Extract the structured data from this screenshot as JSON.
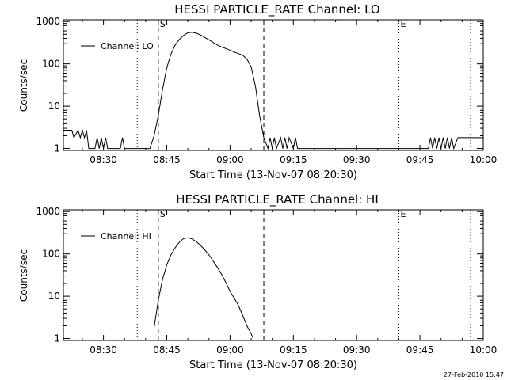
{
  "chart_data": [
    {
      "type": "line",
      "title": "HESSI PARTICLE_RATE Channel: LO",
      "xlabel": "Start Time (13-Nov-07 08:20:30)",
      "ylabel": "Counts/sec",
      "yscale": "log",
      "ylim": [
        0.9,
        1100
      ],
      "xlim": [
        "08:20:30",
        "10:00:00"
      ],
      "xticks": [
        "08:30",
        "08:45",
        "09:00",
        "09:15",
        "09:30",
        "09:45",
        "10:00"
      ],
      "yticks": [
        "1",
        "10",
        "100",
        "1000"
      ],
      "legend": {
        "label": "Channel: LO",
        "position": "top-left"
      },
      "markers": [
        {
          "time": "08:38:00",
          "style": "dotted",
          "label": ""
        },
        {
          "time": "08:43:00",
          "style": "dashed",
          "label": "S"
        },
        {
          "time": "09:08:00",
          "style": "dashed",
          "label": ""
        },
        {
          "time": "09:40:00",
          "style": "dotted",
          "label": "E"
        },
        {
          "time": "09:57:00",
          "style": "dotted",
          "label": ""
        }
      ],
      "series": [
        {
          "name": "Channel: LO",
          "x": [
            "08:20:30",
            "08:22:30",
            "08:23:00",
            "08:24:00",
            "08:24:30",
            "08:25:00",
            "08:25:30",
            "08:26:00",
            "08:26:30",
            "08:27:00",
            "08:28:00",
            "08:28:30",
            "08:29:00",
            "08:29:30",
            "08:30:00",
            "08:30:30",
            "08:31:00",
            "08:32:00",
            "08:33:00",
            "08:34:00",
            "08:34:30",
            "08:35:00",
            "08:36:00",
            "08:37:00",
            "08:38:00",
            "08:39:00",
            "08:40:00",
            "08:41:00",
            "08:42:00",
            "08:43:00",
            "08:44:00",
            "08:45:00",
            "08:46:00",
            "08:47:00",
            "08:48:00",
            "08:49:00",
            "08:50:00",
            "08:51:00",
            "08:52:00",
            "08:53:00",
            "08:54:00",
            "08:55:00",
            "08:56:00",
            "08:57:00",
            "08:58:00",
            "08:59:00",
            "09:00:00",
            "09:01:00",
            "09:02:00",
            "09:03:00",
            "09:04:00",
            "09:05:00",
            "09:06:00",
            "09:07:00",
            "09:08:00",
            "09:09:00",
            "09:09:30",
            "09:10:00",
            "09:10:30",
            "09:11:00",
            "09:12:00",
            "09:12:30",
            "09:13:00",
            "09:13:30",
            "09:14:00",
            "09:15:00",
            "09:15:30",
            "09:16:00",
            "09:17:00",
            "09:18:00",
            "09:30:00",
            "09:40:00",
            "09:47:00",
            "09:47:30",
            "09:48:00",
            "09:48:30",
            "09:49:00",
            "09:49:30",
            "09:50:00",
            "09:50:30",
            "09:51:00",
            "09:51:30",
            "09:52:00",
            "09:52:30",
            "09:53:00",
            "09:54:00",
            "09:55:00",
            "09:56:00",
            "09:57:00",
            "10:00:00"
          ],
          "values": [
            2.7,
            2.7,
            1.8,
            2.7,
            1.8,
            2.7,
            1.8,
            2.7,
            1,
            1,
            1,
            1.8,
            1,
            1.8,
            1,
            1.8,
            1,
            1,
            1,
            1,
            1.8,
            1,
            1,
            1,
            1,
            1,
            1,
            1,
            2,
            6,
            25,
            80,
            170,
            280,
            380,
            470,
            540,
            560,
            530,
            480,
            420,
            370,
            320,
            280,
            250,
            230,
            210,
            190,
            175,
            160,
            130,
            85,
            30,
            6,
            1.8,
            1,
            1.8,
            1,
            1.8,
            1,
            1.8,
            1,
            1.8,
            1,
            1.8,
            1,
            1.8,
            1,
            1,
            1,
            1,
            1,
            1,
            1.8,
            1,
            1.8,
            1,
            1.8,
            1,
            1.8,
            1,
            1.8,
            1,
            1.8,
            1,
            1.8,
            1.8,
            1.8,
            1.8,
            1.8
          ]
        }
      ]
    },
    {
      "type": "line",
      "title": "HESSI PARTICLE_RATE Channel: HI",
      "xlabel": "Start Time (13-Nov-07 08:20:30)",
      "ylabel": "Counts/sec",
      "yscale": "log",
      "ylim": [
        0.9,
        1100
      ],
      "xlim": [
        "08:20:30",
        "10:00:00"
      ],
      "xticks": [
        "08:30",
        "08:45",
        "09:00",
        "09:15",
        "09:30",
        "09:45",
        "10:00"
      ],
      "yticks": [
        "1",
        "10",
        "100",
        "1000"
      ],
      "legend": {
        "label": "Channel: HI",
        "position": "top-left"
      },
      "markers": [
        {
          "time": "08:38:00",
          "style": "dotted",
          "label": ""
        },
        {
          "time": "08:43:00",
          "style": "dashed",
          "label": "S"
        },
        {
          "time": "09:08:00",
          "style": "dashed",
          "label": ""
        },
        {
          "time": "09:40:00",
          "style": "dotted",
          "label": "E"
        },
        {
          "time": "09:57:00",
          "style": "dotted",
          "label": ""
        }
      ],
      "series": [
        {
          "name": "Channel: HI",
          "x": [
            "08:42:00",
            "08:43:00",
            "08:44:00",
            "08:45:00",
            "08:46:00",
            "08:47:00",
            "08:48:00",
            "08:49:00",
            "08:50:00",
            "08:51:00",
            "08:52:00",
            "08:53:00",
            "08:54:00",
            "08:55:00",
            "08:56:00",
            "08:57:00",
            "08:58:00",
            "08:59:00",
            "09:00:00",
            "09:01:00",
            "09:02:00",
            "09:03:00",
            "09:04:00",
            "09:05:00",
            "09:05:30"
          ],
          "values": [
            1.8,
            8,
            25,
            55,
            95,
            140,
            190,
            230,
            240,
            225,
            195,
            160,
            125,
            95,
            68,
            48,
            33,
            21,
            13,
            9,
            6,
            3.5,
            2,
            1.3,
            1
          ]
        }
      ]
    }
  ],
  "footer": {
    "timestamp": "27-Feb-2010 15:47"
  }
}
